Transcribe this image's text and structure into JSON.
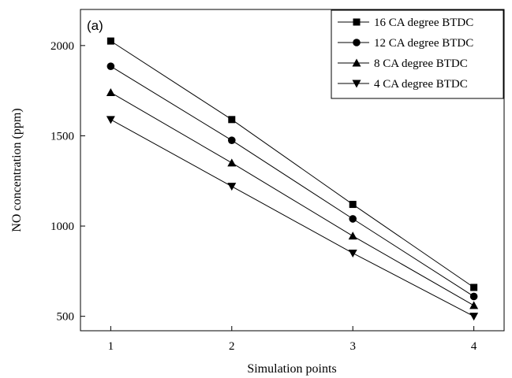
{
  "chart_data": {
    "type": "line",
    "panel_label": "(a)",
    "xlabel": "Simulation points",
    "ylabel": "NO concentration (ppm)",
    "x": [
      1,
      2,
      3,
      4
    ],
    "x_ticks": [
      1,
      2,
      3,
      4
    ],
    "y_ticks": [
      500,
      1000,
      1500,
      2000
    ],
    "xlim": [
      0.75,
      4.25
    ],
    "ylim": [
      420,
      2200
    ],
    "grid": false,
    "legend_position": "top-right",
    "series": [
      {
        "name": "16 CA degree BTDC",
        "marker": "square",
        "values": [
          2025,
          1590,
          1120,
          660
        ]
      },
      {
        "name": "12 CA degree BTDC",
        "marker": "circle",
        "values": [
          1885,
          1475,
          1040,
          610
        ]
      },
      {
        "name": "8 CA degree BTDC",
        "marker": "triangle-up",
        "values": [
          1740,
          1350,
          945,
          560
        ]
      },
      {
        "name": "4 CA degree BTDC",
        "marker": "triangle-down",
        "values": [
          1590,
          1220,
          850,
          500
        ]
      }
    ],
    "colors": {
      "line": "#000000",
      "background": "#ffffff"
    }
  }
}
